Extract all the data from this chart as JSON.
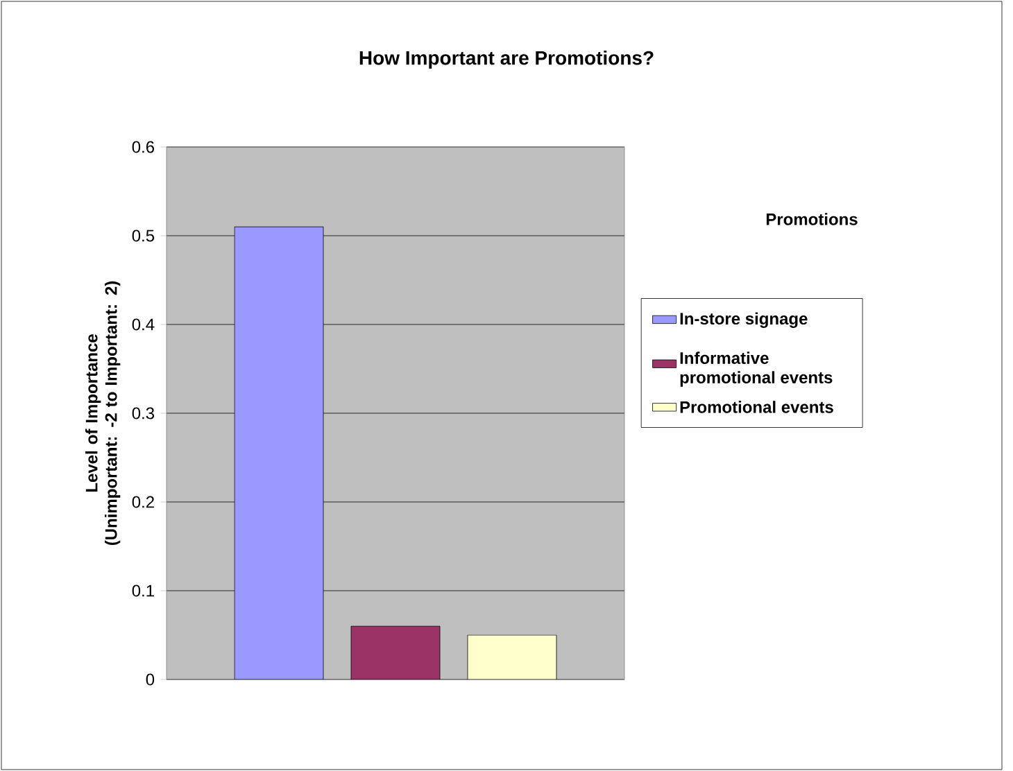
{
  "chart_data": {
    "type": "bar",
    "title": "How Important are Promotions?",
    "ylabel": "Level of Importance (Unimportant: -2 to Important: 2)",
    "legend_title": "Promotions",
    "categories": [
      null
    ],
    "series": [
      {
        "name": "In-store signage",
        "color": "#9999ff",
        "values": [
          0.51
        ]
      },
      {
        "name": "Informative promotional events",
        "color": "#993366",
        "values": [
          0.06
        ]
      },
      {
        "name": "Promotional events",
        "color": "#ffffcc",
        "values": [
          0.05
        ]
      }
    ],
    "ylim": [
      0,
      0.6
    ],
    "yticks": [
      0,
      0.1,
      0.2,
      0.3,
      0.4,
      0.5,
      0.6
    ],
    "grid": "y",
    "legend": "right"
  }
}
